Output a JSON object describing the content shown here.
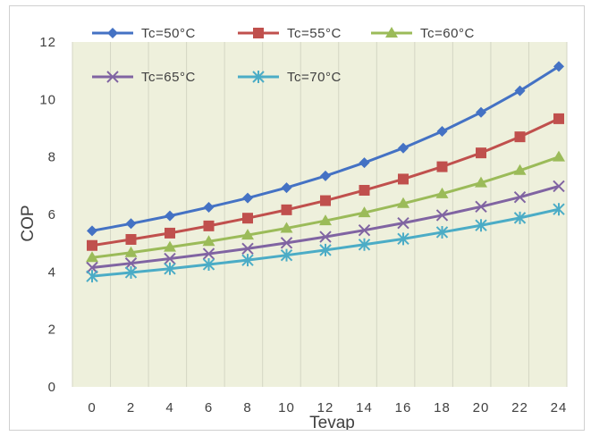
{
  "chart_data": {
    "type": "line",
    "title": "",
    "xlabel": "Tevap",
    "ylabel": "COP",
    "x": [
      0,
      2,
      4,
      6,
      8,
      10,
      12,
      14,
      16,
      18,
      20,
      22,
      24
    ],
    "ylim": [
      0,
      12
    ],
    "yticks": [
      0,
      2,
      4,
      6,
      8,
      10,
      12
    ],
    "grid": "vertical",
    "legend_position": "top",
    "plot_background": "#eef0dc",
    "series": [
      {
        "name": "Tc=50°C",
        "color": "#4472c4",
        "marker": "diamond",
        "values": [
          5.43,
          5.68,
          5.95,
          6.25,
          6.57,
          6.93,
          7.34,
          7.8,
          8.31,
          8.89,
          9.55,
          10.3,
          11.15
        ]
      },
      {
        "name": "Tc=55°C",
        "color": "#c0504d",
        "marker": "square",
        "values": [
          4.92,
          5.13,
          5.35,
          5.6,
          5.87,
          6.16,
          6.48,
          6.84,
          7.23,
          7.66,
          8.14,
          8.7,
          9.33
        ]
      },
      {
        "name": "Tc=60°C",
        "color": "#9bbb59",
        "marker": "triangle",
        "values": [
          4.5,
          4.67,
          4.86,
          5.06,
          5.28,
          5.52,
          5.78,
          6.06,
          6.38,
          6.72,
          7.1,
          7.53,
          8.0
        ]
      },
      {
        "name": "Tc=65°C",
        "color": "#8064a2",
        "marker": "x",
        "values": [
          4.15,
          4.3,
          4.46,
          4.63,
          4.81,
          5.01,
          5.22,
          5.45,
          5.7,
          5.97,
          6.27,
          6.6,
          6.98
        ]
      },
      {
        "name": "Tc=70°C",
        "color": "#4bacc6",
        "marker": "star",
        "values": [
          3.85,
          3.98,
          4.11,
          4.26,
          4.41,
          4.58,
          4.76,
          4.95,
          5.15,
          5.38,
          5.62,
          5.88,
          6.18
        ]
      }
    ]
  }
}
